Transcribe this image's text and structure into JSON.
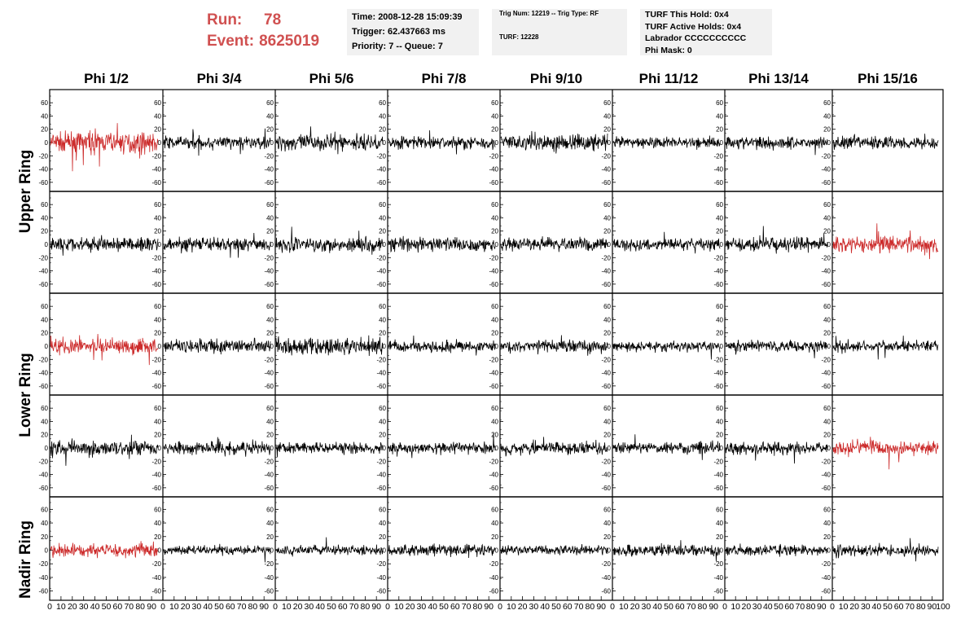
{
  "header": {
    "run_label": "Run:",
    "run_value": "78",
    "event_label": "Event:",
    "event_value": "8625019",
    "accent_color": "#d05050"
  },
  "info_box_1": {
    "time": "Time: 2008-12-28 15:09:39",
    "trigger": "Trigger: 62.437663 ms",
    "priority": "Priority: 7 -- Queue: 7"
  },
  "info_box_2": {
    "trig": "Trig Num: 12219 -- Trig Type: RF",
    "turf": "TURF: 12228"
  },
  "info_box_3": {
    "hold": "TURF This Hold: 0x4",
    "active": "TURF Active Holds: 0x4",
    "labrador": "Labrador CCCCCCCCCC",
    "phimask": "Phi Mask: 0"
  },
  "columns": [
    "Phi 1/2",
    "Phi 3/4",
    "Phi 5/6",
    "Phi 7/8",
    "Phi 9/10",
    "Phi 11/12",
    "Phi 13/14",
    "Phi 15/16"
  ],
  "ring_labels": [
    "Upper Ring",
    "Lower Ring",
    "Nadir Ring"
  ],
  "chart_data": {
    "type": "line",
    "description_rows": 5,
    "x_ticks": [
      "0",
      "10",
      "20",
      "30",
      "40",
      "50",
      "60",
      "70",
      "80",
      "90",
      "100"
    ],
    "y_ticks": [
      "60",
      "40",
      "20",
      "0",
      "-20",
      "-40",
      "-60"
    ],
    "ylim": [
      -70,
      70
    ],
    "xlim": [
      0,
      100
    ],
    "colors": {
      "normal": "#000000",
      "triggered": "#cc2a2a"
    },
    "highlighted_panels": [
      [
        0,
        0
      ],
      [
        1,
        7
      ],
      [
        2,
        0
      ],
      [
        3,
        7
      ],
      [
        4,
        0
      ]
    ],
    "amplitude_rows": [
      [
        22,
        14,
        18,
        14,
        18,
        12,
        14,
        14
      ],
      [
        16,
        14,
        16,
        16,
        14,
        12,
        14,
        18
      ],
      [
        18,
        14,
        18,
        12,
        14,
        12,
        12,
        12
      ],
      [
        16,
        14,
        12,
        12,
        14,
        12,
        12,
        16
      ],
      [
        14,
        10,
        10,
        12,
        10,
        12,
        12,
        12
      ]
    ]
  }
}
